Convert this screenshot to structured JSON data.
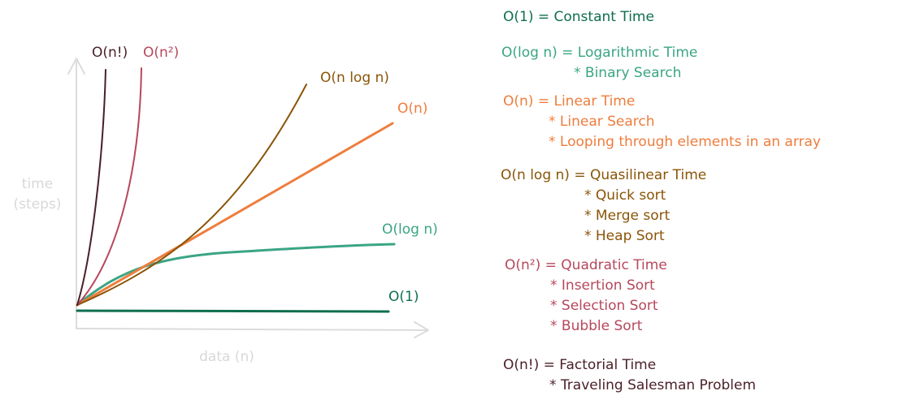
{
  "axes": {
    "y_label_line1": "time",
    "y_label_line2": "(steps)",
    "x_label": "data (n)"
  },
  "colors": {
    "axis": "#dcdcdc",
    "axis_label": "#d8d8d8",
    "constant": "#0f6e4f",
    "logarithmic": "#3aa584",
    "linear": "#ee7d3d",
    "quasilinear": "#8a5407",
    "quadratic": "#b7475c",
    "factorial": "#4a1f28"
  },
  "chart": {
    "curves": [
      {
        "id": "o1",
        "label": "O(1)",
        "color_key": "constant"
      },
      {
        "id": "ologn",
        "label": "O(log n)",
        "color_key": "logarithmic"
      },
      {
        "id": "on",
        "label": "O(n)",
        "color_key": "linear"
      },
      {
        "id": "onlogn",
        "label": "O(n log n)",
        "color_key": "quasilinear"
      },
      {
        "id": "on2",
        "label": "O(n²)",
        "color_key": "quadratic"
      },
      {
        "id": "onf",
        "label": "O(n!)",
        "color_key": "factorial"
      }
    ]
  },
  "legend": [
    {
      "id": "constant",
      "color_key": "constant",
      "title": "O(1) = Constant Time",
      "items": []
    },
    {
      "id": "logarithmic",
      "color_key": "logarithmic",
      "title": "O(log n) = Logarithmic Time",
      "items": [
        "* Binary Search"
      ]
    },
    {
      "id": "linear",
      "color_key": "linear",
      "title": "O(n) = Linear Time",
      "items": [
        "* Linear Search",
        "* Looping through elements in an array"
      ]
    },
    {
      "id": "quasilinear",
      "color_key": "quasilinear",
      "title": "O(n log n) = Quasilinear Time",
      "items": [
        "* Quick sort",
        "* Merge sort",
        "* Heap Sort"
      ]
    },
    {
      "id": "quadratic",
      "color_key": "quadratic",
      "title": "O(n²) = Quadratic Time",
      "items": [
        "* Insertion Sort",
        "* Selection Sort",
        "* Bubble Sort"
      ]
    },
    {
      "id": "factorial",
      "color_key": "factorial",
      "title": "O(n!) = Factorial Time",
      "items": [
        "* Traveling Salesman Problem"
      ]
    }
  ]
}
